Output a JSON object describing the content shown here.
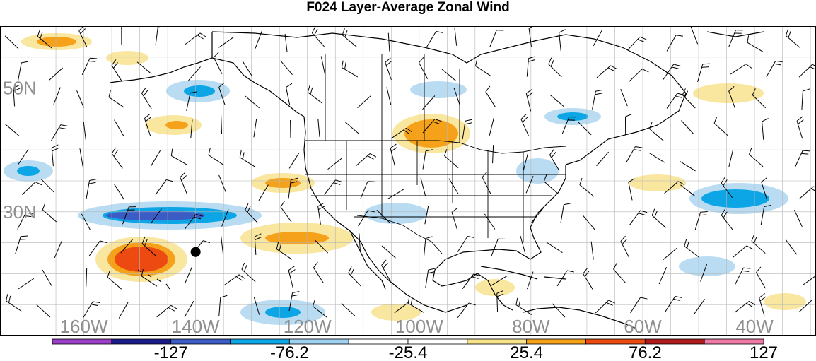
{
  "title": "F024 Layer-Average Zonal Wind",
  "map": {
    "lat_labels": [
      {
        "id": "50n",
        "text": "50N",
        "lat": 50
      },
      {
        "id": "30n",
        "text": "30N",
        "lat": 30
      }
    ],
    "lon_labels": [
      {
        "id": "160w",
        "text": "160W",
        "lon": -160
      },
      {
        "id": "140w",
        "text": "140W",
        "lon": -140
      },
      {
        "id": "120w",
        "text": "120W",
        "lon": -120
      },
      {
        "id": "100w",
        "text": "100W",
        "lon": -100
      },
      {
        "id": "80w",
        "text": "80W",
        "lon": -80
      },
      {
        "id": "60w",
        "text": "60W",
        "lon": -60
      },
      {
        "id": "40w",
        "text": "40W",
        "lon": -40
      }
    ],
    "extent": {
      "lon_min": -175,
      "lon_max": -29,
      "lat_min": 10,
      "lat_max": 60
    },
    "grid_lon_step": 5,
    "grid_lat_step": 5,
    "marker": {
      "lon": -140,
      "lat": 23.5,
      "color": "#000000"
    }
  },
  "colorbar": {
    "colors": [
      "#9b3fc9",
      "#1a1a8a",
      "#3a5cc4",
      "#0ca6e6",
      "#9fd2f0",
      "#ffffff",
      "#ffffff",
      "#f7e38c",
      "#f5a21a",
      "#ec4a10",
      "#b01a1a",
      "#f07aa6"
    ],
    "labels": [
      "-127",
      "-76.2",
      "-25.4",
      "25.4",
      "76.2",
      "127"
    ],
    "label_bounds": [
      2,
      4,
      6,
      8,
      10,
      12
    ]
  },
  "shade_colors": {
    "strong_neg": "#3a5cc4",
    "mid_neg": "#0ca6e6",
    "weak_neg": "#b9dcf2",
    "weak_pos": "#f9e7a0",
    "mid_pos": "#f5a21a",
    "strong_pos": "#ec4a10"
  }
}
